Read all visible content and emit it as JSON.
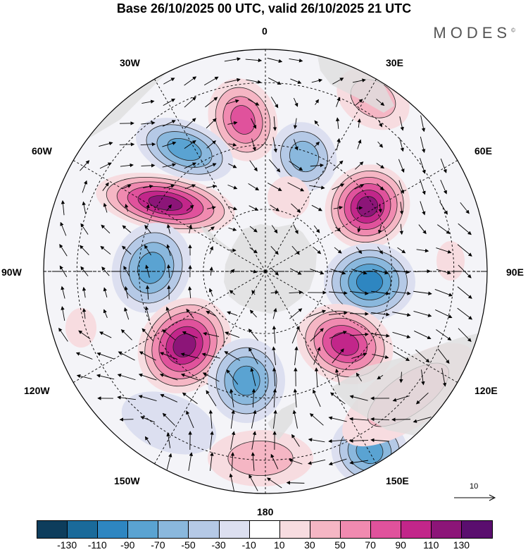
{
  "title": "Base 26/10/2025 00 UTC, valid 26/10/2025 21 UTC",
  "logo": "MODES",
  "logo_mark": "©",
  "lon_labels": [
    "0",
    "30E",
    "60E",
    "90E",
    "120E",
    "150E",
    "180",
    "150W",
    "120W",
    "90W",
    "60W",
    "30W"
  ],
  "ref_vector": "10",
  "colorbar": {
    "colors": [
      "#0d3d5c",
      "#1a6a9a",
      "#2e86c1",
      "#5aa3d2",
      "#8ab8dd",
      "#b5c9e6",
      "#dcdff0",
      "#ffffff",
      "#f7dce0",
      "#f5b6c4",
      "#f08ab0",
      "#e0529c",
      "#c2268a",
      "#8c1578",
      "#5a0e6e"
    ],
    "labels": [
      "-130",
      "-110",
      "-90",
      "-70",
      "-50",
      "-30",
      "-10",
      "10",
      "30",
      "50",
      "70",
      "90",
      "110",
      "130"
    ]
  },
  "colors": {
    "land": "#e6e6e6",
    "graticule": "#000000"
  }
}
